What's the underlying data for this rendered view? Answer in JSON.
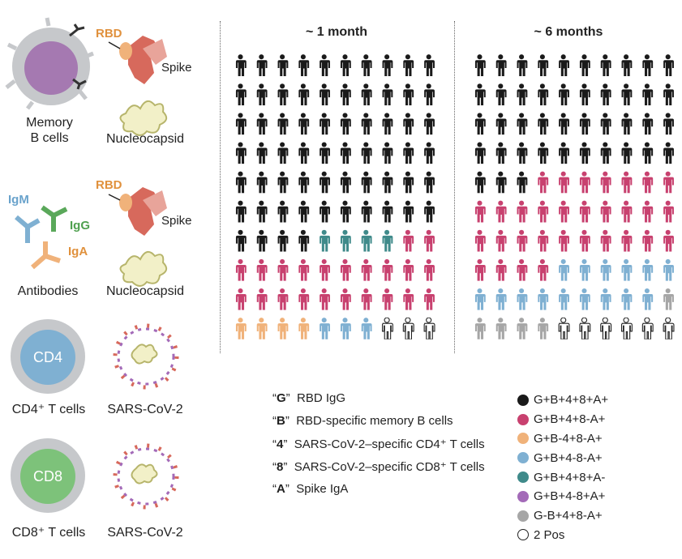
{
  "left_panel": {
    "memory_b_cells": "Memory\nB cells",
    "rbd_1": "RBD",
    "spike_1": "Spike",
    "nucleocapsid_1": "Nucleocapsid",
    "igm": "IgM",
    "igg": "IgG",
    "iga": "IgA",
    "antibodies": "Antibodies",
    "rbd_2": "RBD",
    "spike_2": "Spike",
    "nucleocapsid_2": "Nucleocapsid",
    "cd4_badge": "CD4",
    "cd4_t_cells": "CD4⁺ T cells",
    "sars_1": "SARS-CoV-2",
    "cd8_badge": "CD8",
    "cd8_t_cells": "CD8⁺ T cells",
    "sars_2": "SARS-CoV-2"
  },
  "panels": {
    "month1": {
      "title": "~ 1 month",
      "rows": [
        [
          "k",
          "k",
          "k",
          "k",
          "k",
          "k",
          "k",
          "k",
          "k",
          "k"
        ],
        [
          "k",
          "k",
          "k",
          "k",
          "k",
          "k",
          "k",
          "k",
          "k",
          "k"
        ],
        [
          "k",
          "k",
          "k",
          "k",
          "k",
          "k",
          "k",
          "k",
          "k",
          "k"
        ],
        [
          "k",
          "k",
          "k",
          "k",
          "k",
          "k",
          "k",
          "k",
          "k",
          "k"
        ],
        [
          "k",
          "k",
          "k",
          "k",
          "k",
          "k",
          "k",
          "k",
          "k",
          "k"
        ],
        [
          "k",
          "k",
          "k",
          "k",
          "k",
          "k",
          "k",
          "k",
          "k",
          "k"
        ],
        [
          "k",
          "k",
          "k",
          "k",
          "t",
          "t",
          "t",
          "t",
          "p",
          "p"
        ],
        [
          "p",
          "p",
          "p",
          "p",
          "p",
          "p",
          "p",
          "p",
          "p",
          "p"
        ],
        [
          "p",
          "p",
          "p",
          "p",
          "p",
          "p",
          "p",
          "p",
          "pv",
          "po"
        ],
        [
          "o",
          "o",
          "o",
          "ob",
          "b",
          "b",
          "b",
          "w",
          "w",
          "w"
        ]
      ]
    },
    "month6": {
      "title": "~ 6 months",
      "rows": [
        [
          "k",
          "k",
          "k",
          "k",
          "k",
          "k",
          "k",
          "k",
          "k",
          "k"
        ],
        [
          "k",
          "k",
          "k",
          "k",
          "k",
          "k",
          "k",
          "k",
          "k",
          "k"
        ],
        [
          "k",
          "k",
          "k",
          "k",
          "k",
          "k",
          "k",
          "k",
          "k",
          "k"
        ],
        [
          "k",
          "k",
          "k",
          "k",
          "k",
          "k",
          "k",
          "k",
          "k",
          "k"
        ],
        [
          "k",
          "k",
          "k",
          "p",
          "p",
          "p",
          "p",
          "p",
          "p",
          "p"
        ],
        [
          "p",
          "p",
          "p",
          "p",
          "p",
          "p",
          "p",
          "p",
          "p",
          "p"
        ],
        [
          "p",
          "p",
          "p",
          "p",
          "p",
          "p",
          "p",
          "p",
          "p",
          "p"
        ],
        [
          "p",
          "p",
          "p",
          "p",
          "b",
          "b",
          "b",
          "b",
          "b",
          "b"
        ],
        [
          "b",
          "b",
          "b",
          "b",
          "b",
          "b",
          "b",
          "b",
          "bg",
          "g"
        ],
        [
          "g",
          "g",
          "g",
          "g",
          "w",
          "w",
          "w",
          "w",
          "w",
          "w"
        ]
      ]
    }
  },
  "key": [
    {
      "code": "G",
      "desc": "RBD IgG"
    },
    {
      "code": "B",
      "desc": "RBD-specific memory B cells"
    },
    {
      "code": "4",
      "desc": "SARS-CoV-2–specific CD4⁺ T cells"
    },
    {
      "code": "8",
      "desc": "SARS-CoV-2–specific CD8⁺ T cells"
    },
    {
      "code": "A",
      "desc": "Spike IgA"
    }
  ],
  "legend": [
    {
      "label": "G+B+4+8+A+",
      "color": "#1a1a1a"
    },
    {
      "label": "G+B+4+8-A+",
      "color": "#c8416f"
    },
    {
      "label": "G+B-4+8-A+",
      "color": "#f0b27a"
    },
    {
      "label": "G+B+4-8-A+",
      "color": "#7fb0d2"
    },
    {
      "label": "G+B+4+8+A-",
      "color": "#3f8a8a"
    },
    {
      "label": "G+B+4-8+A+",
      "color": "#a36ab8"
    },
    {
      "label": "G-B+4+8-A+",
      "color": "#a6a6a6"
    },
    {
      "label": "2 Pos",
      "color": "#ffffff"
    }
  ]
}
